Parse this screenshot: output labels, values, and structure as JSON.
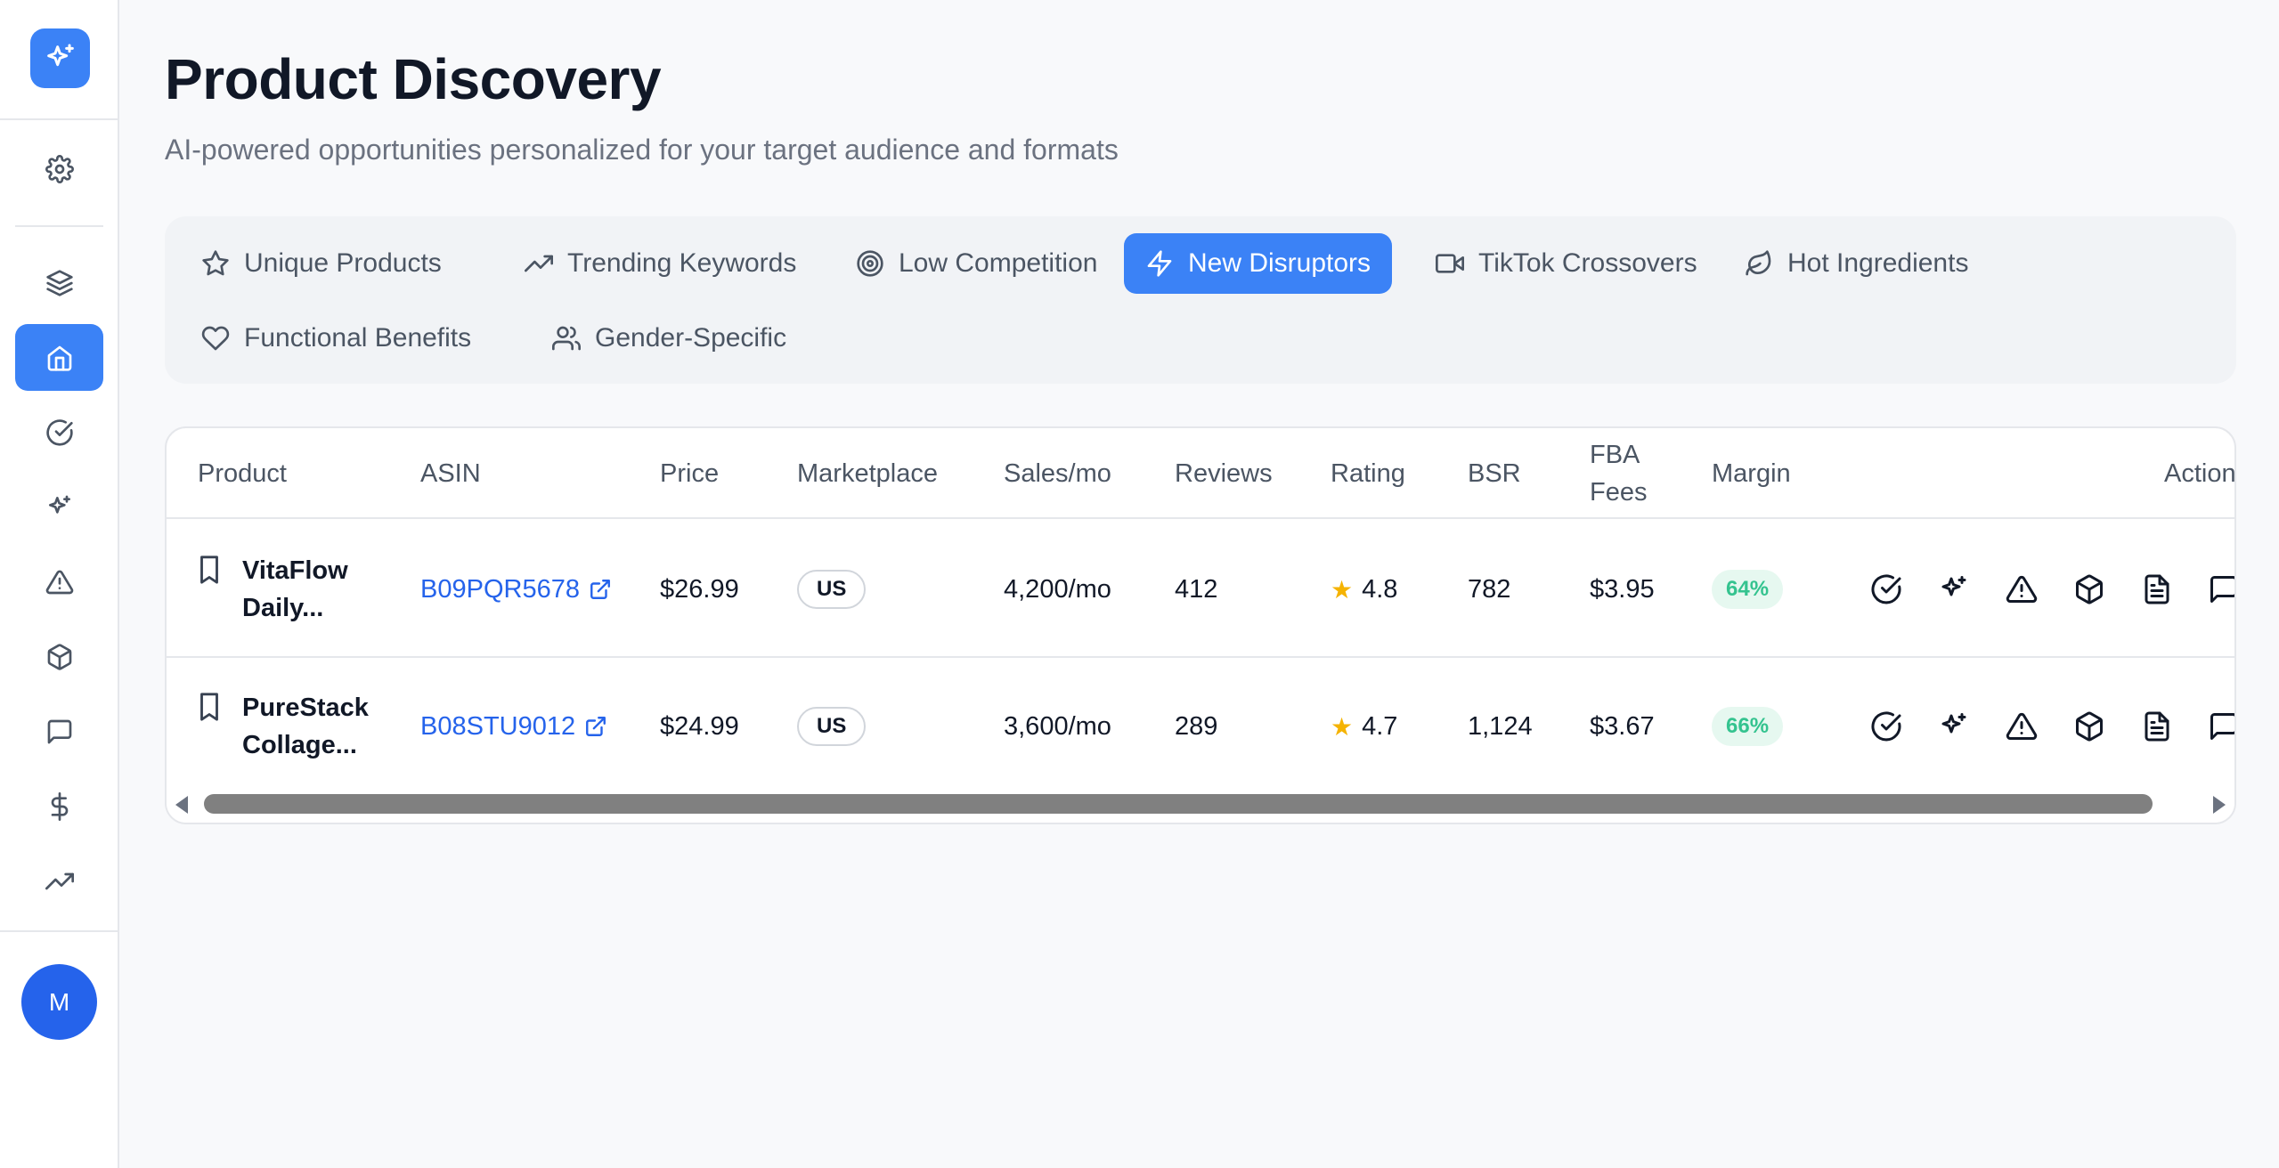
{
  "sidebar": {
    "logo_icon": "sparkles-icon",
    "items": [
      {
        "icon": "settings-gear-icon",
        "active": false
      },
      {
        "icon": "layers-icon",
        "active": false
      },
      {
        "icon": "home-icon",
        "active": true
      },
      {
        "icon": "check-circle-icon",
        "active": false
      },
      {
        "icon": "sparkles-icon",
        "active": false
      },
      {
        "icon": "alert-triangle-icon",
        "active": false
      },
      {
        "icon": "package-icon",
        "active": false
      },
      {
        "icon": "message-square-icon",
        "active": false
      },
      {
        "icon": "dollar-icon",
        "active": false
      },
      {
        "icon": "trending-up-icon",
        "active": false
      }
    ],
    "avatar_initial": "M"
  },
  "header": {
    "title": "Product Discovery",
    "subtitle": "AI-powered opportunities personalized for your target audience and formats"
  },
  "tabs": [
    {
      "label": "Unique Products",
      "icon": "star-icon",
      "active": false
    },
    {
      "label": "Trending Keywords",
      "icon": "trending-up-icon",
      "active": false
    },
    {
      "label": "Low Competition",
      "icon": "target-icon",
      "active": false
    },
    {
      "label": "New Disruptors",
      "icon": "zap-icon",
      "active": true
    },
    {
      "label": "TikTok Crossovers",
      "icon": "video-icon",
      "active": false
    },
    {
      "label": "Hot Ingredients",
      "icon": "leaf-icon",
      "active": false
    },
    {
      "label": "Functional Benefits",
      "icon": "heart-icon",
      "active": false
    },
    {
      "label": "Gender-Specific",
      "icon": "users-icon",
      "active": false
    }
  ],
  "table": {
    "columns": [
      "Product",
      "ASIN",
      "Price",
      "Marketplace",
      "Sales/mo",
      "Reviews",
      "Rating",
      "BSR",
      "FBA\nFees",
      "Margin",
      "Action"
    ],
    "rows": [
      {
        "product": "VitaFlow Daily...",
        "asin": "B09PQR5678",
        "price": "$26.99",
        "marketplace": "US",
        "sales": "4,200/mo",
        "reviews": "412",
        "rating": "4.8",
        "bsr": "782",
        "fba_fees": "$3.95",
        "margin": "64%"
      },
      {
        "product": "PureStack Collage...",
        "asin": "B08STU9012",
        "price": "$24.99",
        "marketplace": "US",
        "sales": "3,600/mo",
        "reviews": "289",
        "rating": "4.7",
        "bsr": "1,124",
        "fba_fees": "$3.67",
        "margin": "66%"
      }
    ],
    "action_icons": [
      "check-circle-icon",
      "sparkles-icon",
      "alert-triangle-icon",
      "package-icon",
      "file-text-icon",
      "message-square-icon"
    ]
  },
  "colors": {
    "accent": "#3b82f6",
    "margin_text": "#34c38f",
    "margin_bg": "#e6f8f0",
    "star": "#f5b301",
    "link": "#2563eb"
  }
}
